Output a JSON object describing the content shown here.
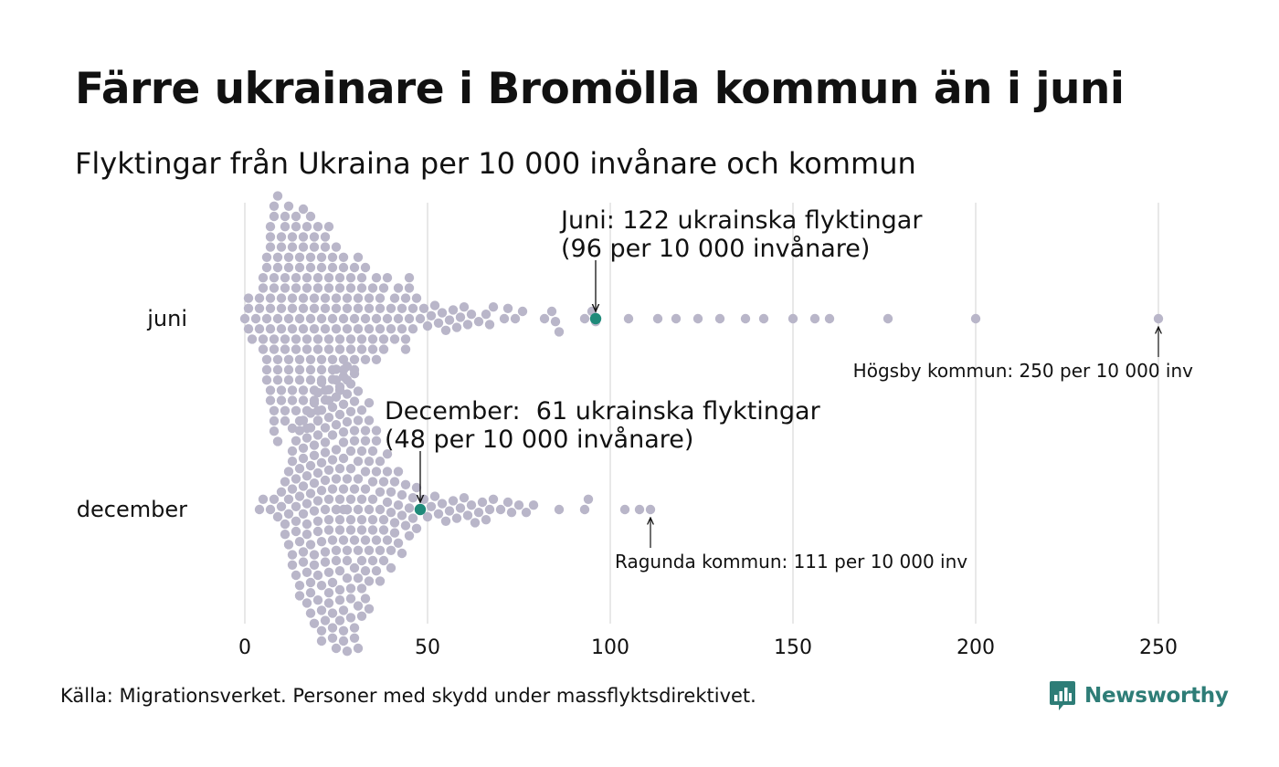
{
  "title": "Färre ukrainare i Bromölla kommun än i juni",
  "subtitle": "Flyktingar från Ukraina per 10 000 invånare och kommun",
  "source": "Källa: Migrationsverket. Personer med skydd under massflyktsdirektivet.",
  "brand": {
    "name": "Newsworthy",
    "icon": "newsworthy-logo-icon",
    "color": "#2e7d77"
  },
  "chart_data": {
    "type": "scatter",
    "x_ticks": [
      0,
      50,
      100,
      150,
      200,
      250
    ],
    "xlim": [
      0,
      250
    ],
    "grid": "vertical",
    "colors": {
      "dot": "#b9b6c9",
      "highlight": "#1f8a7a",
      "grid": "#d0d0d0"
    },
    "series": [
      {
        "name": "juni",
        "values": [
          0,
          1,
          1,
          1,
          2,
          3,
          4,
          4,
          4,
          5,
          5,
          5,
          5,
          6,
          6,
          6,
          6,
          6,
          6,
          7,
          7,
          7,
          7,
          7,
          7,
          7,
          7,
          8,
          8,
          8,
          8,
          8,
          8,
          8,
          8,
          8,
          9,
          9,
          9,
          9,
          9,
          9,
          9,
          9,
          10,
          10,
          10,
          10,
          10,
          10,
          10,
          11,
          11,
          11,
          11,
          11,
          11,
          11,
          11,
          12,
          12,
          12,
          12,
          12,
          12,
          12,
          13,
          13,
          13,
          13,
          13,
          13,
          13,
          13,
          14,
          14,
          14,
          14,
          14,
          14,
          14,
          15,
          15,
          15,
          15,
          15,
          15,
          15,
          16,
          16,
          16,
          16,
          16,
          16,
          16,
          16,
          17,
          17,
          17,
          17,
          17,
          17,
          17,
          18,
          18,
          18,
          18,
          18,
          18,
          18,
          19,
          19,
          19,
          19,
          19,
          19,
          19,
          20,
          20,
          20,
          20,
          20,
          20,
          20,
          21,
          21,
          21,
          21,
          21,
          21,
          22,
          22,
          22,
          22,
          22,
          22,
          23,
          23,
          23,
          23,
          23,
          23,
          24,
          24,
          24,
          24,
          24,
          25,
          25,
          25,
          25,
          25,
          26,
          26,
          26,
          26,
          26,
          27,
          27,
          27,
          27,
          27,
          28,
          28,
          28,
          28,
          29,
          29,
          29,
          29,
          30,
          30,
          30,
          30,
          31,
          31,
          31,
          31,
          32,
          32,
          32,
          32,
          33,
          33,
          33,
          34,
          34,
          34,
          35,
          35,
          35,
          36,
          36,
          36,
          37,
          37,
          37,
          38,
          38,
          38,
          39,
          39,
          40,
          40,
          41,
          41,
          42,
          42,
          43,
          43,
          44,
          44,
          44,
          45,
          45,
          45,
          46,
          46,
          47,
          48,
          49,
          50,
          51,
          52,
          53,
          54,
          55,
          56,
          57,
          58,
          59,
          60,
          61,
          62,
          64,
          66,
          67,
          68,
          71,
          72,
          74,
          76,
          82,
          84,
          85,
          86,
          93,
          95,
          96,
          105,
          113,
          118,
          124,
          130,
          137,
          142,
          150,
          156,
          160,
          176,
          200,
          250
        ],
        "highlight": {
          "value": 96,
          "label": "Juni: 122 ukrainska flyktingar\n(96 per 10 000 invånare)"
        },
        "annotation": {
          "value": 250,
          "label": "Högsby kommun: 250 per 10 000 inv"
        }
      },
      {
        "name": "december",
        "values": [
          4,
          5,
          7,
          8,
          9,
          10,
          10,
          11,
          11,
          11,
          12,
          12,
          12,
          12,
          13,
          13,
          13,
          13,
          13,
          14,
          14,
          14,
          14,
          14,
          14,
          15,
          15,
          15,
          15,
          15,
          15,
          16,
          16,
          16,
          16,
          16,
          16,
          16,
          17,
          17,
          17,
          17,
          17,
          17,
          17,
          18,
          18,
          18,
          18,
          18,
          18,
          18,
          18,
          19,
          19,
          19,
          19,
          19,
          19,
          19,
          19,
          20,
          20,
          20,
          20,
          20,
          20,
          20,
          20,
          20,
          21,
          21,
          21,
          21,
          21,
          21,
          21,
          21,
          21,
          22,
          22,
          22,
          22,
          22,
          22,
          22,
          22,
          22,
          23,
          23,
          23,
          23,
          23,
          23,
          23,
          23,
          23,
          24,
          24,
          24,
          24,
          24,
          24,
          24,
          24,
          24,
          24,
          25,
          25,
          25,
          25,
          25,
          25,
          25,
          25,
          25,
          25,
          26,
          26,
          26,
          26,
          26,
          26,
          26,
          26,
          26,
          26,
          27,
          27,
          27,
          27,
          27,
          27,
          27,
          27,
          27,
          27,
          27,
          28,
          28,
          28,
          28,
          28,
          28,
          28,
          28,
          28,
          28,
          28,
          28,
          29,
          29,
          29,
          29,
          29,
          29,
          29,
          29,
          29,
          29,
          30,
          30,
          30,
          30,
          30,
          30,
          30,
          30,
          30,
          31,
          31,
          31,
          31,
          31,
          31,
          31,
          31,
          31,
          32,
          32,
          32,
          32,
          32,
          32,
          32,
          32,
          33,
          33,
          33,
          33,
          33,
          33,
          33,
          34,
          34,
          34,
          34,
          34,
          34,
          34,
          35,
          35,
          35,
          35,
          35,
          35,
          36,
          36,
          36,
          36,
          36,
          37,
          37,
          37,
          37,
          37,
          38,
          38,
          38,
          38,
          39,
          39,
          39,
          39,
          40,
          40,
          40,
          40,
          41,
          41,
          41,
          42,
          42,
          42,
          43,
          43,
          43,
          44,
          44,
          45,
          45,
          46,
          46,
          47,
          47,
          48,
          49,
          50,
          51,
          52,
          53,
          54,
          55,
          56,
          57,
          58,
          59,
          60,
          61,
          62,
          63,
          64,
          65,
          66,
          67,
          68,
          70,
          72,
          73,
          75,
          77,
          79,
          86,
          93,
          94,
          104,
          108,
          111
        ],
        "highlight": {
          "value": 48,
          "label": "December:  61 ukrainska flyktingar\n(48 per 10 000 invånare)"
        },
        "annotation": {
          "value": 111,
          "label": "Ragunda kommun: 111 per 10 000 inv"
        }
      }
    ]
  }
}
